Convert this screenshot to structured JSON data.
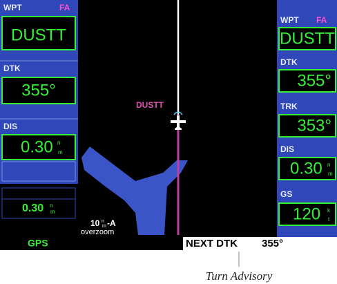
{
  "left_panel": {
    "waypoint": {
      "label": "WPT",
      "flag": "FA",
      "value": "DUSTT"
    },
    "dtk": {
      "label": "DTK",
      "value": "355°"
    },
    "dis": {
      "label": "DIS",
      "value": "0.30",
      "unit": [
        "n",
        "m"
      ]
    },
    "lower": {
      "value": "0.30",
      "unit": [
        "n",
        "m"
      ]
    }
  },
  "map": {
    "waypoint_label": "DUSTT",
    "range": "10",
    "range_unit": [
      "n",
      "m"
    ],
    "range_suffix": "-A",
    "mode": "overzoom"
  },
  "right_panel": {
    "waypoint": {
      "label": "WPT",
      "flag": "FA",
      "value": "DUSTT"
    },
    "dtk": {
      "label": "DTK",
      "value": "355°"
    },
    "trk": {
      "label": "TRK",
      "value": "353°"
    },
    "dis": {
      "label": "DIS",
      "value": "0.30",
      "unit": [
        "n",
        "m"
      ]
    },
    "gs": {
      "label": "GS",
      "value": "120",
      "unit": [
        "k",
        "t"
      ]
    }
  },
  "status_bar": {
    "mode": "GPS",
    "message_label": "NEXT DTK",
    "message_value": "355°"
  },
  "caption": "Turn Advisory"
}
